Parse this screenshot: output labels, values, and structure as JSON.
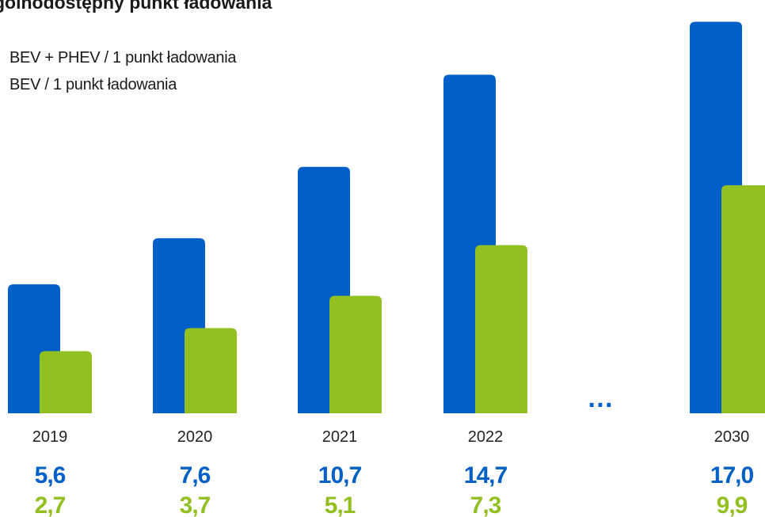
{
  "page_title": "gólnodostępny punkt ładowania",
  "colors": {
    "bev_phev": "#0060C8",
    "bev": "#93C021"
  },
  "ellipsis": "…",
  "chart_data": {
    "type": "bar",
    "title": "gólnodostępny punkt ładowania",
    "categories": [
      "2019",
      "2020",
      "2021",
      "2022",
      "2030"
    ],
    "series": [
      {
        "name": "BEV + PHEV / 1 punkt ładowania",
        "values": [
          5.6,
          7.6,
          10.7,
          14.7,
          17.0
        ],
        "labels": [
          "5,6",
          "7,6",
          "10,7",
          "14,7",
          "17,0"
        ]
      },
      {
        "name": "BEV / 1 punkt ładowania",
        "values": [
          2.7,
          3.7,
          5.1,
          7.3,
          9.9
        ],
        "labels": [
          "2,7",
          "3,7",
          "5,1",
          "7,3",
          "9,9"
        ]
      }
    ],
    "xlabel": "",
    "ylabel": "",
    "ylim": [
      0,
      17.6
    ],
    "grid": false,
    "legend_position": "top-left"
  }
}
